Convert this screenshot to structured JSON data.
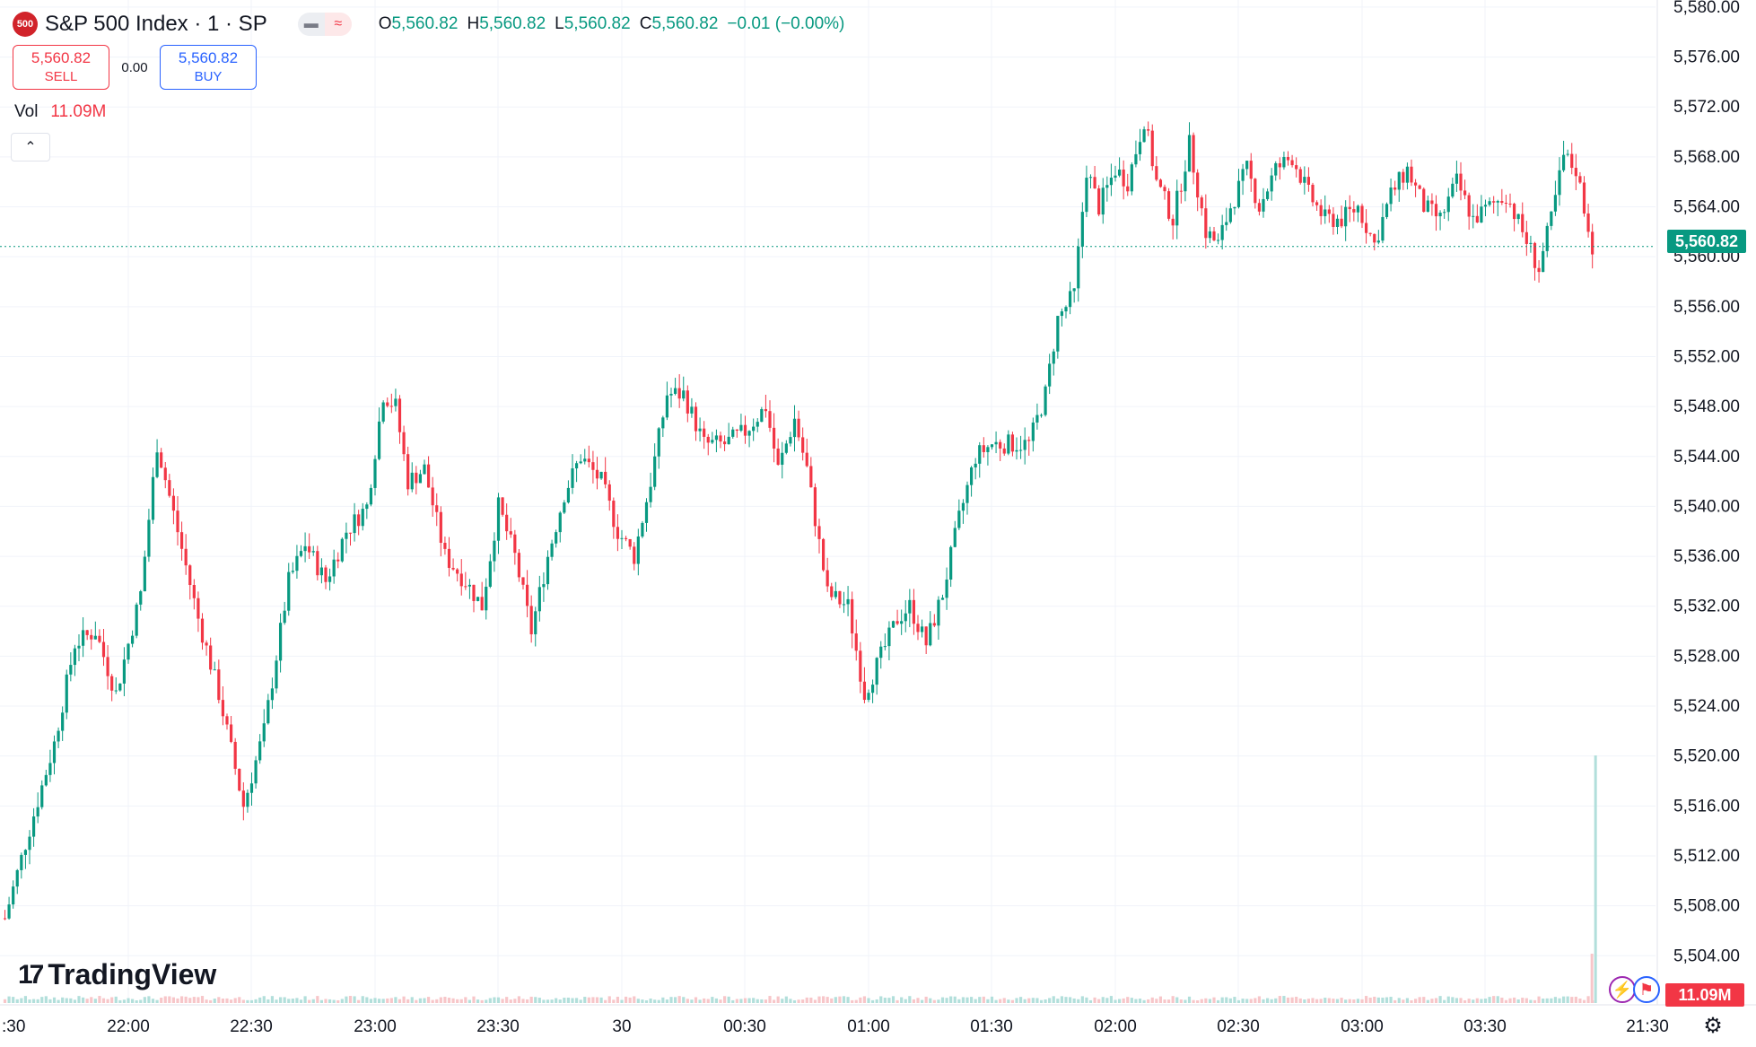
{
  "header": {
    "logo_text": "500",
    "symbol_title": "S&P 500 Index · 1 · SP",
    "pill_left_icon": "dash-icon",
    "pill_right_icon": "wave-icon",
    "open_label": "O",
    "open_value": "5,560.82",
    "high_label": "H",
    "high_value": "5,560.82",
    "low_label": "L",
    "low_value": "5,560.82",
    "close_label": "C",
    "close_value": "5,560.82",
    "change_text": "−0.01 (−0.00%)"
  },
  "trade": {
    "sell_price": "5,560.82",
    "sell_label": "SELL",
    "spread": "0.00",
    "buy_price": "5,560.82",
    "buy_label": "BUY"
  },
  "volume": {
    "label": "Vol",
    "value": "11.09M"
  },
  "watermark": "TradingView",
  "current_price_tag": "5,560.82",
  "current_volume_tag": "11.09M",
  "colors": {
    "up": "#089981",
    "down": "#f23645",
    "grid": "#f0f3fa",
    "accent": "#2962ff"
  },
  "chart_data": {
    "type": "candlestick",
    "title": "S&P 500 Index · 1 · SP",
    "interval_minutes": 1,
    "price_axis": {
      "ylim": [
        5501,
        5581
      ],
      "ticks": [
        "5,504.00",
        "5,508.00",
        "5,512.00",
        "5,516.00",
        "5,520.00",
        "5,524.00",
        "5,528.00",
        "5,532.00",
        "5,536.00",
        "5,540.00",
        "5,544.00",
        "5,548.00",
        "5,552.00",
        "5,556.00",
        "5,560.00",
        "5,564.00",
        "5,568.00",
        "5,572.00",
        "5,576.00",
        "5,580.00"
      ]
    },
    "time_axis": {
      "ticks": [
        ":30",
        "22:00",
        "22:30",
        "23:00",
        "23:30",
        "30",
        "00:30",
        "01:00",
        "01:30",
        "02:00",
        "02:30",
        "03:00",
        "03:30",
        "21:30"
      ]
    },
    "path_points": [
      {
        "time": "21:30",
        "price": 5507
      },
      {
        "time": "21:35",
        "price": 5513
      },
      {
        "time": "21:42",
        "price": 5521
      },
      {
        "time": "21:47",
        "price": 5529
      },
      {
        "time": "21:52",
        "price": 5530
      },
      {
        "time": "21:57",
        "price": 5525
      },
      {
        "time": "22:03",
        "price": 5533
      },
      {
        "time": "22:07",
        "price": 5545
      },
      {
        "time": "22:12",
        "price": 5538
      },
      {
        "time": "22:17",
        "price": 5531
      },
      {
        "time": "22:22",
        "price": 5525
      },
      {
        "time": "22:28",
        "price": 5516
      },
      {
        "time": "22:33",
        "price": 5522
      },
      {
        "time": "22:39",
        "price": 5534
      },
      {
        "time": "22:43",
        "price": 5537
      },
      {
        "time": "22:48",
        "price": 5534
      },
      {
        "time": "22:53",
        "price": 5538
      },
      {
        "time": "22:58",
        "price": 5540
      },
      {
        "time": "23:02",
        "price": 5549
      },
      {
        "time": "23:05",
        "price": 5548
      },
      {
        "time": "23:08",
        "price": 5542
      },
      {
        "time": "23:12",
        "price": 5543
      },
      {
        "time": "23:17",
        "price": 5536
      },
      {
        "time": "23:22",
        "price": 5534
      },
      {
        "time": "23:26",
        "price": 5532
      },
      {
        "time": "23:30",
        "price": 5540
      },
      {
        "time": "23:34",
        "price": 5536
      },
      {
        "time": "23:38",
        "price": 5530
      },
      {
        "time": "23:42",
        "price": 5536
      },
      {
        "time": "23:46",
        "price": 5541
      },
      {
        "time": "23:50",
        "price": 5544
      },
      {
        "time": "23:55",
        "price": 5542
      },
      {
        "time": "23:59",
        "price": 5538
      },
      {
        "time": "00:03",
        "price": 5536
      },
      {
        "time": "00:07",
        "price": 5542
      },
      {
        "time": "00:11",
        "price": 5549
      },
      {
        "time": "00:15",
        "price": 5549
      },
      {
        "time": "00:20",
        "price": 5545
      },
      {
        "time": "00:25",
        "price": 5545
      },
      {
        "time": "00:30",
        "price": 5546
      },
      {
        "time": "00:35",
        "price": 5548
      },
      {
        "time": "00:38",
        "price": 5543
      },
      {
        "time": "00:42",
        "price": 5547
      },
      {
        "time": "00:45",
        "price": 5543
      },
      {
        "time": "00:50",
        "price": 5533
      },
      {
        "time": "00:55",
        "price": 5532
      },
      {
        "time": "00:59",
        "price": 5525
      },
      {
        "time": "01:03",
        "price": 5528
      },
      {
        "time": "01:07",
        "price": 5531
      },
      {
        "time": "01:10",
        "price": 5532
      },
      {
        "time": "01:14",
        "price": 5529
      },
      {
        "time": "01:18",
        "price": 5533
      },
      {
        "time": "01:22",
        "price": 5539
      },
      {
        "time": "01:26",
        "price": 5544
      },
      {
        "time": "01:30",
        "price": 5545
      },
      {
        "time": "01:35",
        "price": 5545
      },
      {
        "time": "01:39",
        "price": 5545
      },
      {
        "time": "01:43",
        "price": 5549
      },
      {
        "time": "01:46",
        "price": 5555
      },
      {
        "time": "01:50",
        "price": 5557
      },
      {
        "time": "01:53",
        "price": 5567
      },
      {
        "time": "01:56",
        "price": 5564
      },
      {
        "time": "02:00",
        "price": 5567
      },
      {
        "time": "02:03",
        "price": 5566
      },
      {
        "time": "02:07",
        "price": 5571
      },
      {
        "time": "02:10",
        "price": 5566
      },
      {
        "time": "02:14",
        "price": 5563
      },
      {
        "time": "02:18",
        "price": 5569
      },
      {
        "time": "02:22",
        "price": 5562
      },
      {
        "time": "02:25",
        "price": 5561
      },
      {
        "time": "02:28",
        "price": 5564
      },
      {
        "time": "02:32",
        "price": 5567
      },
      {
        "time": "02:35",
        "price": 5564
      },
      {
        "time": "02:39",
        "price": 5567
      },
      {
        "time": "02:43",
        "price": 5568
      },
      {
        "time": "02:47",
        "price": 5565
      },
      {
        "time": "02:51",
        "price": 5563
      },
      {
        "time": "02:55",
        "price": 5563
      },
      {
        "time": "02:59",
        "price": 5564
      },
      {
        "time": "03:03",
        "price": 5561
      },
      {
        "time": "03:07",
        "price": 5565
      },
      {
        "time": "03:11",
        "price": 5567
      },
      {
        "time": "03:15",
        "price": 5564
      },
      {
        "time": "03:19",
        "price": 5563
      },
      {
        "time": "03:23",
        "price": 5566
      },
      {
        "time": "03:27",
        "price": 5563
      },
      {
        "time": "03:31",
        "price": 5564
      },
      {
        "time": "03:35",
        "price": 5565
      },
      {
        "time": "03:39",
        "price": 5562
      },
      {
        "time": "03:43",
        "price": 5559
      },
      {
        "time": "03:46",
        "price": 5563
      },
      {
        "time": "03:49",
        "price": 5568
      },
      {
        "time": "03:52",
        "price": 5567
      },
      {
        "time": "03:54",
        "price": 5564
      },
      {
        "time": "03:56",
        "price": 5560.82
      }
    ],
    "volume_scale": {
      "latest": "11.09M"
    }
  }
}
